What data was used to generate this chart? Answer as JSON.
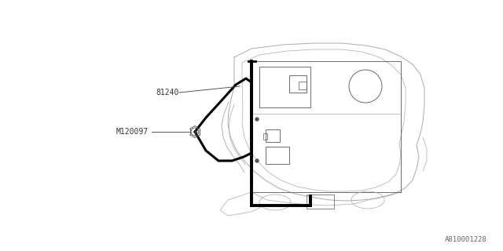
{
  "bg_color": "#ffffff",
  "line_color": "#aaaaaa",
  "dark_line_color": "#555555",
  "thick_line_color": "#000000",
  "label_81240": "81240",
  "label_M120097": "M120097",
  "part_number": "A810001228",
  "fig_width": 6.4,
  "fig_height": 3.2,
  "dpi": 100
}
